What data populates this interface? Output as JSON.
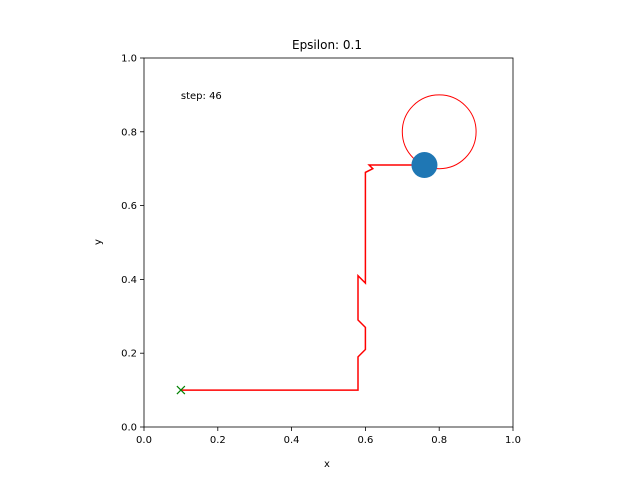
{
  "chart_data": {
    "type": "line",
    "title": "Epsilon: 0.1",
    "xlabel": "x",
    "ylabel": "y",
    "xlim": [
      0,
      1
    ],
    "ylim": [
      0,
      1
    ],
    "grid": false,
    "x_ticks": [
      "0.0",
      "0.2",
      "0.4",
      "0.6",
      "0.8",
      "1.0"
    ],
    "y_ticks": [
      "0.0",
      "0.2",
      "0.4",
      "0.6",
      "0.8",
      "1.0"
    ],
    "annotation": "step: 46",
    "colors": {
      "path": "#ff0000",
      "agent": "#1f77b4",
      "start": "#008000",
      "goal_ring": "#ff0000"
    },
    "path": {
      "x": [
        0.1,
        0.58,
        0.58,
        0.6,
        0.6,
        0.58,
        0.58,
        0.6,
        0.6,
        0.6,
        0.62,
        0.61,
        0.76
      ],
      "y": [
        0.1,
        0.1,
        0.19,
        0.21,
        0.27,
        0.29,
        0.41,
        0.39,
        0.69,
        0.69,
        0.7,
        0.71,
        0.71
      ]
    },
    "start_marker": {
      "x": 0.1,
      "y": 0.1,
      "symbol": "x"
    },
    "agent_position": {
      "x": 0.76,
      "y": 0.71
    },
    "goal_ring": {
      "x": 0.8,
      "y": 0.8,
      "radius": 0.1
    }
  }
}
